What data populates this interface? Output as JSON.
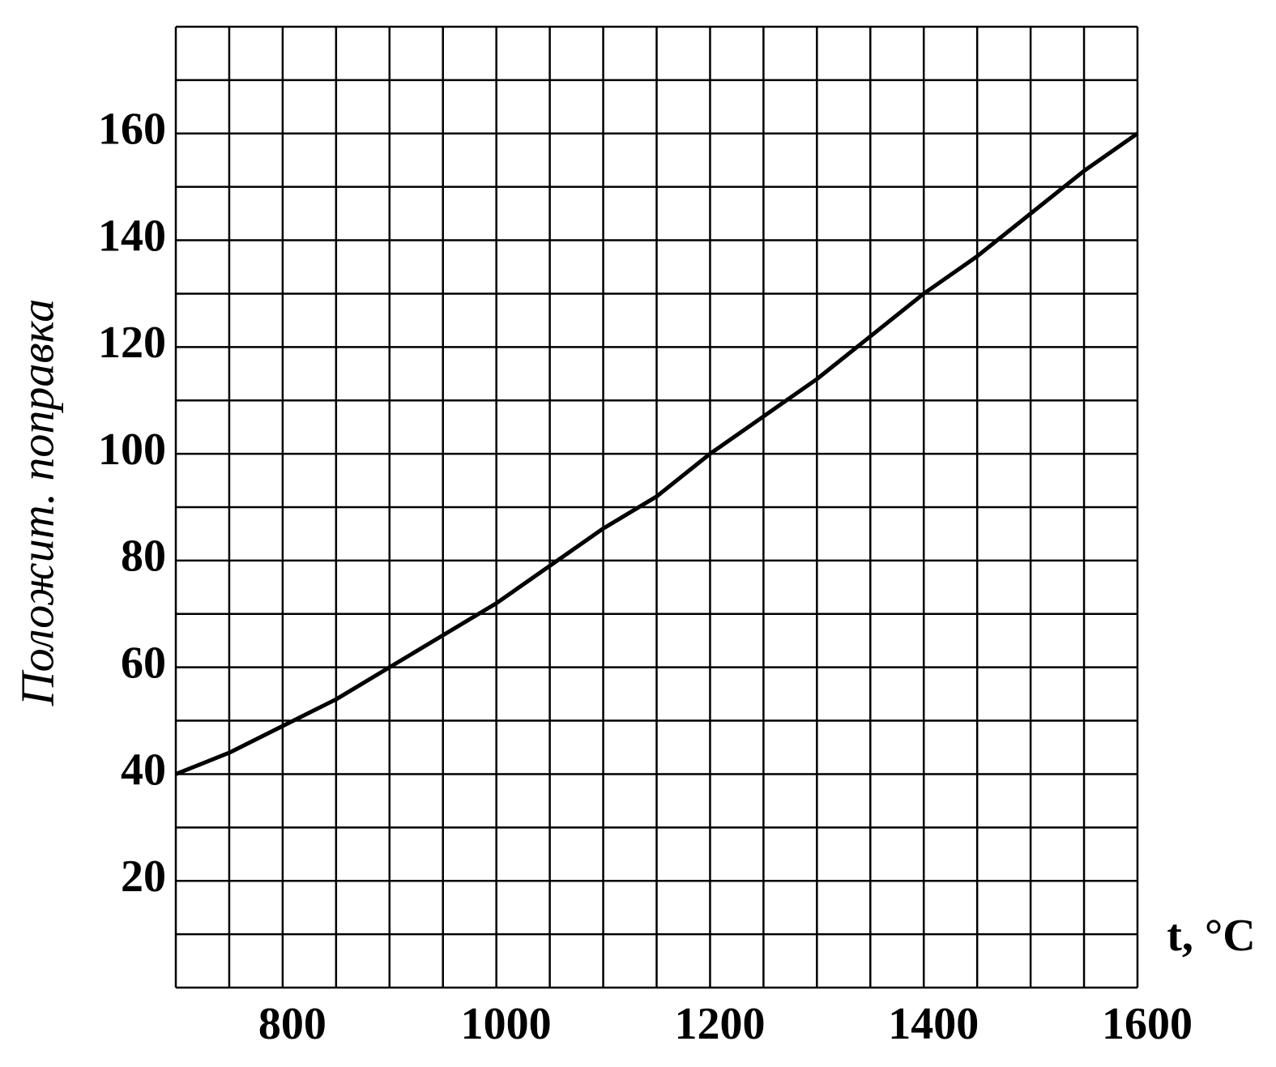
{
  "chart_data": {
    "type": "line",
    "x_label": "t, °C",
    "y_label": "Положит. поправка",
    "x": [
      700,
      750,
      800,
      850,
      900,
      950,
      1000,
      1050,
      1100,
      1150,
      1200,
      1250,
      1300,
      1350,
      1400,
      1450,
      1500,
      1550,
      1600
    ],
    "series": [
      {
        "color": "#000000",
        "values": [
          40,
          44,
          49,
          54,
          60,
          66,
          72,
          79,
          86,
          92,
          100,
          107,
          114,
          122,
          130,
          137,
          145,
          153,
          160
        ]
      }
    ],
    "xlim": [
      700,
      1600
    ],
    "ylim": [
      0,
      180
    ],
    "xticks": [
      800,
      1000,
      1200,
      1400,
      1600
    ],
    "yticks": [
      20,
      40,
      60,
      80,
      100,
      120,
      140,
      160
    ],
    "x_grid": [
      700,
      750,
      800,
      850,
      900,
      950,
      1000,
      1050,
      1100,
      1150,
      1200,
      1250,
      1300,
      1350,
      1400,
      1450,
      1500,
      1550,
      1600
    ],
    "y_grid": [
      0,
      10,
      20,
      30,
      40,
      50,
      60,
      70,
      80,
      90,
      100,
      110,
      120,
      130,
      140,
      150,
      160,
      170,
      180
    ],
    "grid": true
  }
}
